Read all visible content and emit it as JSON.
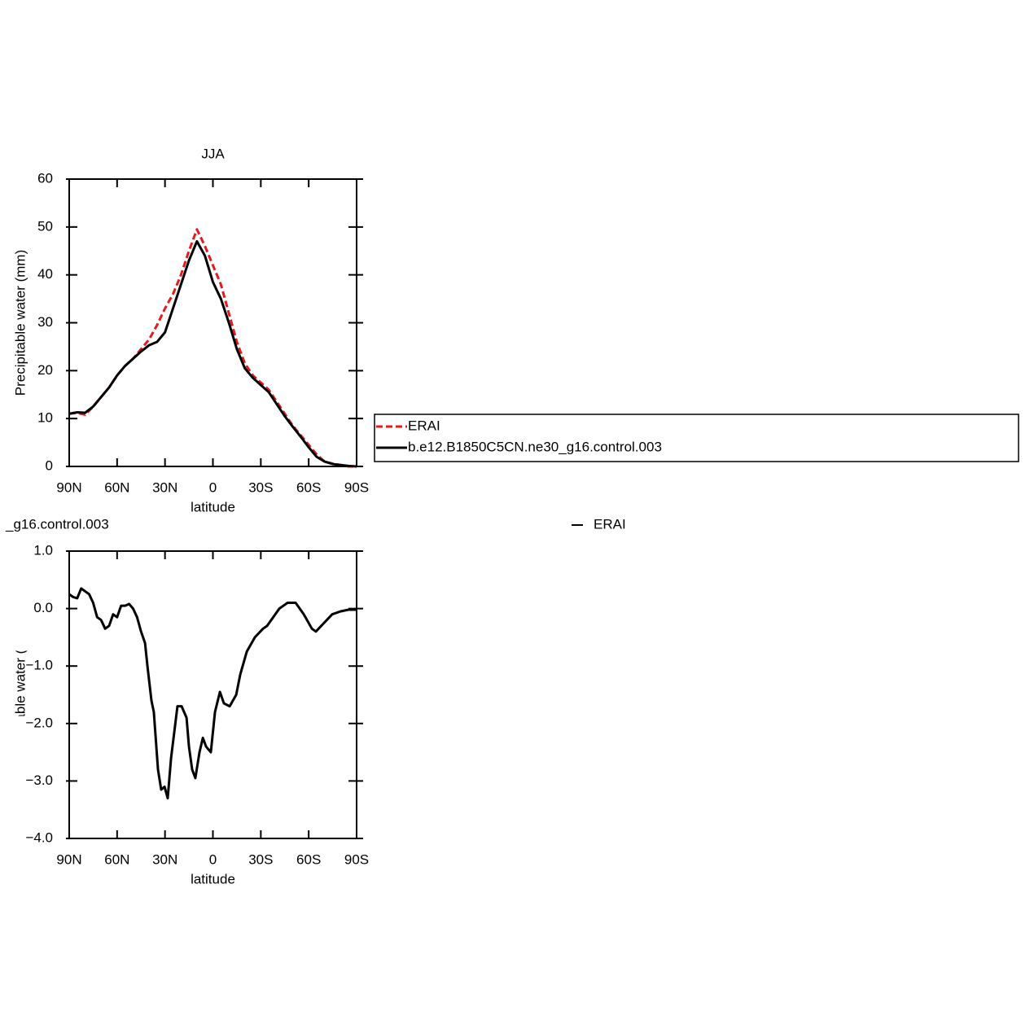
{
  "chart_data": [
    {
      "type": "line",
      "title": "JJA",
      "xlabel": "latitude",
      "ylabel": "Precipitable water (mm)",
      "x": [
        90,
        85,
        80,
        75,
        70,
        65,
        60,
        55,
        50,
        45,
        40,
        35,
        30,
        25,
        20,
        15,
        10,
        5,
        0,
        -5,
        -10,
        -15,
        -20,
        -25,
        -30,
        -35,
        -40,
        -45,
        -50,
        -55,
        -60,
        -65,
        -70,
        -75,
        -80,
        -85,
        -90
      ],
      "xlim": [
        90,
        -90
      ],
      "xticks": [
        {
          "value": 90,
          "label": "90N"
        },
        {
          "value": 60,
          "label": "60N"
        },
        {
          "value": 30,
          "label": "30N"
        },
        0,
        {
          "value": -30,
          "label": "30S"
        },
        {
          "value": -60,
          "label": "60S"
        },
        {
          "value": -90,
          "label": "90S"
        }
      ],
      "ylim": [
        0,
        60
      ],
      "yticks": [
        0,
        10,
        20,
        30,
        40,
        50,
        60
      ],
      "legend": "outside-right",
      "series": [
        {
          "name": "ERAI",
          "color": "#e41a1c",
          "linestyle": "dashed",
          "values": [
            11,
            11.2,
            10.8,
            12.5,
            14.5,
            16.5,
            19,
            21,
            22.5,
            24.5,
            26.5,
            29.5,
            33,
            36,
            40,
            45,
            49.5,
            46,
            42,
            38,
            32,
            26,
            21.5,
            19,
            17.5,
            16,
            13.5,
            11,
            8.5,
            6.5,
            4.5,
            2.5,
            1,
            0.6,
            0.3,
            0,
            0
          ]
        },
        {
          "name": "b.e12.B1850C5CN.ne30_g16.control.003",
          "color": "#000000",
          "linestyle": "solid",
          "values": [
            11,
            11.3,
            11.2,
            12.5,
            14.5,
            16.5,
            19,
            21,
            22.5,
            24,
            25.3,
            26,
            28,
            33,
            38,
            43,
            47,
            44,
            38.5,
            35,
            30,
            24.5,
            20.5,
            18.5,
            17,
            15.5,
            13,
            10.5,
            8.3,
            6.2,
            4,
            2,
            1,
            0.5,
            0.3,
            0.1,
            0
          ]
        }
      ]
    },
    {
      "type": "line",
      "left_title": "_g16.control.003",
      "right_title": "ERAI",
      "xlabel": "latitude",
      "ylabel": "Precipitable water (mm)",
      "x": [
        90,
        87.5,
        85,
        82.5,
        80,
        77.5,
        75,
        72.5,
        70,
        67.5,
        65,
        62.5,
        60,
        57.5,
        55,
        52.5,
        50,
        47.5,
        45,
        42.5,
        41,
        38.5,
        37,
        34.4,
        32.4,
        30.3,
        28.3,
        26.2,
        22.2,
        19.6,
        16.5,
        15,
        13,
        11,
        8.4,
        6.3,
        4.3,
        1.3,
        -1.3,
        -4.4,
        -6.9,
        -10.5,
        -14.6,
        -17.1,
        -21.2,
        -26.3,
        -31.4,
        -34,
        -36.5,
        -41.6,
        -46.7,
        -51.8,
        -56.9,
        -62,
        -64.5,
        -69.6,
        -74.7,
        -79.8,
        -84.9,
        -90
      ],
      "xlim": [
        90,
        -90
      ],
      "xticks": [
        {
          "value": 90,
          "label": "90N"
        },
        {
          "value": 60,
          "label": "60N"
        },
        {
          "value": 30,
          "label": "30N"
        },
        0,
        {
          "value": -30,
          "label": "30S"
        },
        {
          "value": -60,
          "label": "60S"
        },
        {
          "value": -90,
          "label": "90S"
        }
      ],
      "ylim": [
        -4,
        1
      ],
      "yticks": [
        {
          "value": -4,
          "label": "−4.0"
        },
        {
          "value": -3,
          "label": "−3.0"
        },
        {
          "value": -2,
          "label": "−2.0"
        },
        {
          "value": -1,
          "label": "−1.0"
        },
        {
          "value": 0,
          "label": "0.0"
        },
        {
          "value": 1,
          "label": "1.0"
        }
      ],
      "series": [
        {
          "color": "#000000",
          "linestyle": "solid",
          "values": [
            0.25,
            0.2,
            0.18,
            0.35,
            0.3,
            0.25,
            0.1,
            -0.15,
            -0.2,
            -0.35,
            -0.3,
            -0.1,
            -0.15,
            0.05,
            0.05,
            0.08,
            0,
            -0.15,
            -0.4,
            -0.6,
            -1,
            -1.6,
            -1.8,
            -2.8,
            -3.15,
            -3.1,
            -3.3,
            -2.6,
            -1.7,
            -1.7,
            -1.9,
            -2.4,
            -2.8,
            -2.95,
            -2.5,
            -2.25,
            -2.4,
            -2.5,
            -1.8,
            -1.45,
            -1.65,
            -1.7,
            -1.5,
            -1.15,
            -0.75,
            -0.5,
            -0.35,
            -0.3,
            -0.2,
            0,
            0.1,
            0.1,
            -0.1,
            -0.35,
            -0.4,
            -0.25,
            -0.1,
            -0.05,
            -0.02,
            -0.02
          ]
        }
      ]
    }
  ]
}
